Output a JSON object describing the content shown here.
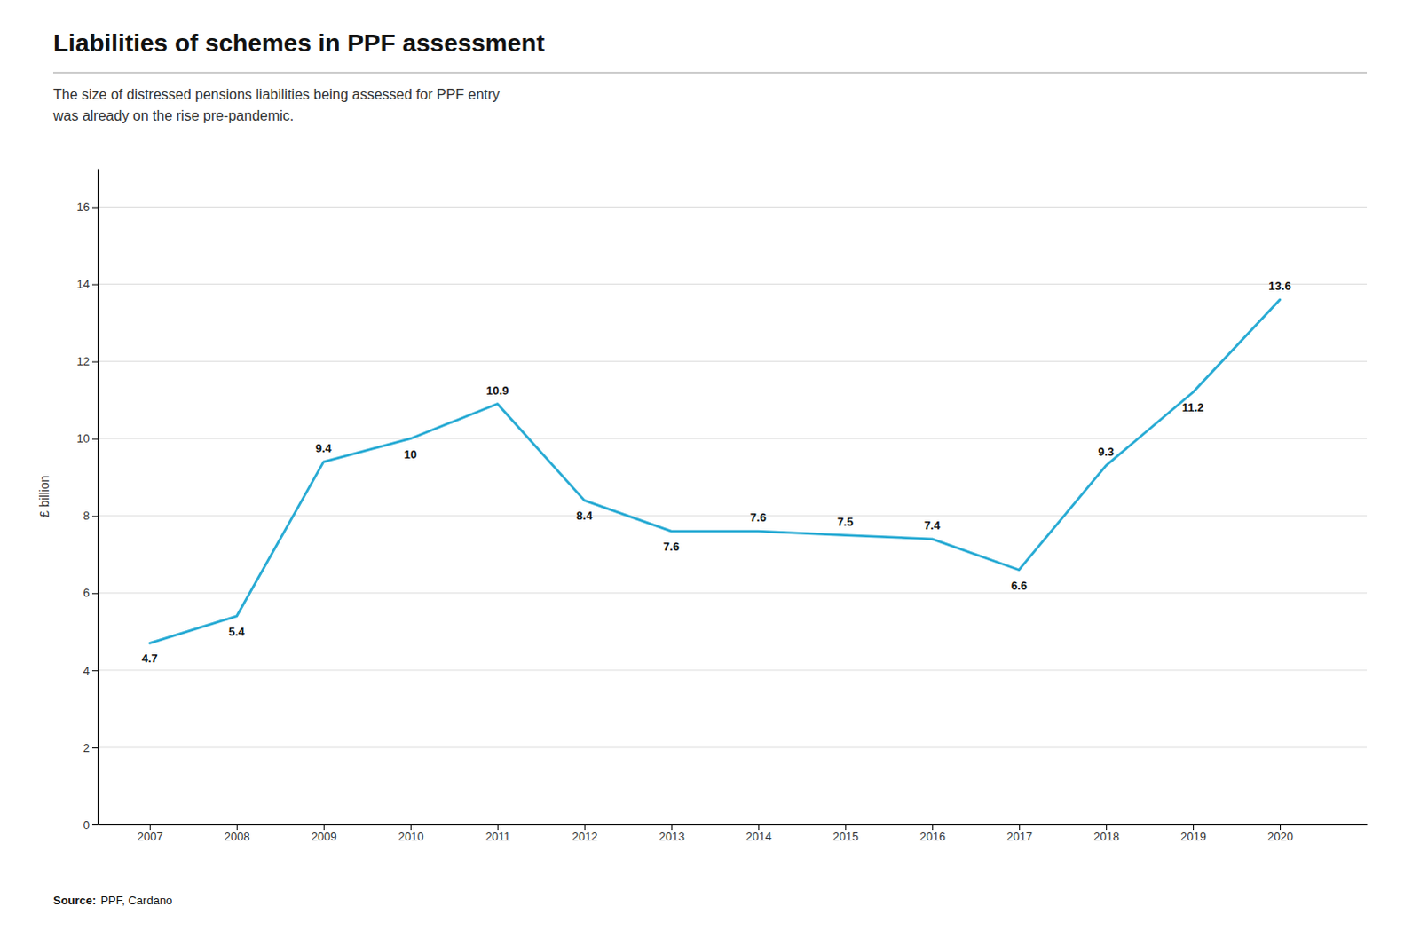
{
  "chart_data": {
    "type": "line",
    "title": "Liabilities of schemes in PPF assessment",
    "subtitle": [
      "The size of distressed pensions liabilities being assessed for PPF entry",
      "was already on the rise pre-pandemic."
    ],
    "source": [
      "Source:",
      "PPF, Cardano"
    ],
    "x": [
      2007,
      2008,
      2009,
      2010,
      2011,
      2012,
      2013,
      2014,
      2015,
      2016,
      2017,
      2018,
      2019,
      2020
    ],
    "values": [
      4.7,
      5.4,
      9.4,
      10.0,
      10.9,
      8.4,
      7.6,
      7.6,
      7.5,
      7.4,
      6.6,
      9.3,
      11.2,
      13.6
    ],
    "color": "#29ABD4",
    "ylabel": "£ billion",
    "xlim": [
      2006.4,
      2021.0
    ],
    "xticks": [
      2007,
      2008,
      2009,
      2010,
      2011,
      2012,
      2013,
      2014,
      2015,
      2016,
      2017,
      2018,
      2019,
      2020
    ],
    "ylim": [
      0,
      17
    ],
    "yticks": [
      0,
      2,
      4,
      6,
      8,
      10,
      12,
      14,
      16
    ],
    "grid": true,
    "data_labels": true
  }
}
